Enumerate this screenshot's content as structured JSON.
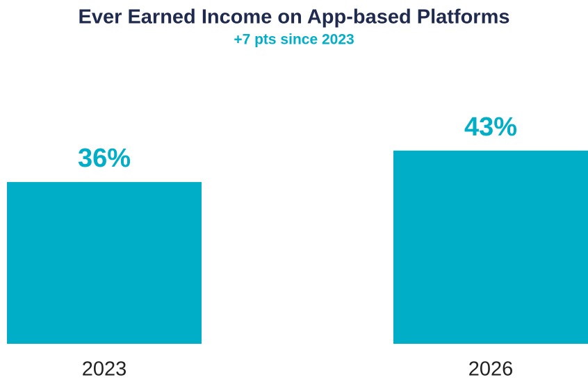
{
  "chart_data": {
    "type": "bar",
    "title": "Ever Earned Income on App-based Platforms",
    "subtitle": "+7 pts since 2023",
    "categories": [
      "2023",
      "2026"
    ],
    "values": [
      36,
      43
    ],
    "value_labels": [
      "36%",
      "43%"
    ],
    "color": "#00aec7"
  }
}
